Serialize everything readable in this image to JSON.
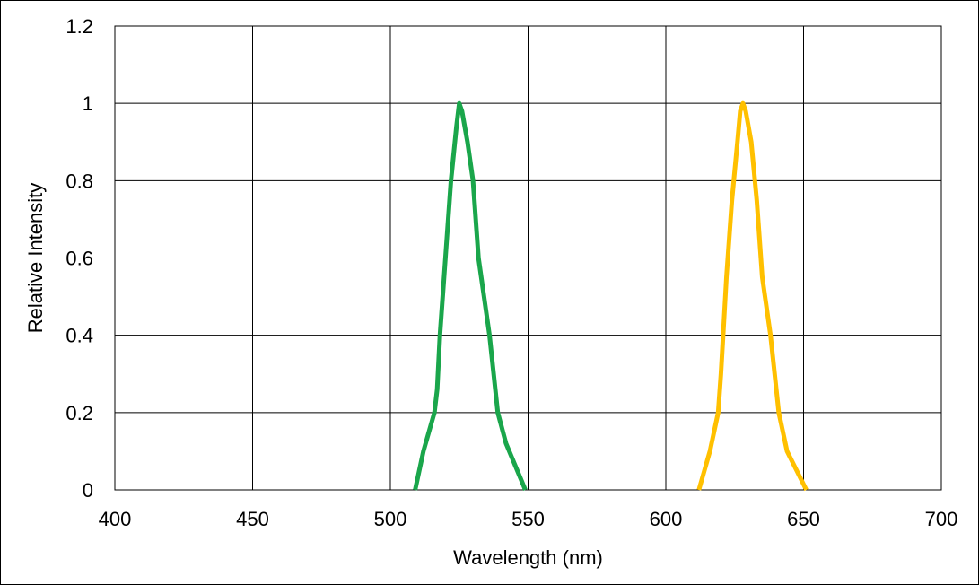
{
  "chart_data": {
    "type": "line",
    "title": "",
    "xlabel": "Wavelength (nm)",
    "ylabel": "Relative Intensity",
    "xlim": [
      400,
      700
    ],
    "ylim": [
      0,
      1.2
    ],
    "x_ticks": [
      400,
      450,
      500,
      550,
      600,
      650,
      700
    ],
    "y_ticks": [
      0,
      0.2,
      0.4,
      0.6,
      0.8,
      1,
      1.2
    ],
    "x_tick_labels": [
      "400",
      "450",
      "500",
      "550",
      "600",
      "650",
      "700"
    ],
    "y_tick_labels": [
      "0",
      "0.2",
      "0.4",
      "0.6",
      "0.8",
      "1",
      "1.2"
    ],
    "grid": true,
    "legend": "none",
    "series": [
      {
        "color": "#1aa64b",
        "points": [
          [
            509,
            0
          ],
          [
            512,
            0.1
          ],
          [
            516,
            0.2
          ],
          [
            517,
            0.26
          ],
          [
            518,
            0.4
          ],
          [
            520,
            0.6
          ],
          [
            522,
            0.8
          ],
          [
            524,
            0.94
          ],
          [
            525,
            1.0
          ],
          [
            526,
            0.98
          ],
          [
            528,
            0.9
          ],
          [
            530,
            0.8
          ],
          [
            532,
            0.6
          ],
          [
            536,
            0.4
          ],
          [
            539,
            0.2
          ],
          [
            542,
            0.12
          ],
          [
            549,
            0
          ]
        ]
      },
      {
        "color": "#ffc000",
        "points": [
          [
            612,
            0
          ],
          [
            616,
            0.1
          ],
          [
            619,
            0.2
          ],
          [
            620,
            0.3
          ],
          [
            622,
            0.55
          ],
          [
            624,
            0.75
          ],
          [
            626,
            0.9
          ],
          [
            627,
            0.98
          ],
          [
            628,
            1.0
          ],
          [
            629,
            0.98
          ],
          [
            631,
            0.9
          ],
          [
            633,
            0.75
          ],
          [
            635,
            0.55
          ],
          [
            638,
            0.4
          ],
          [
            641,
            0.2
          ],
          [
            644,
            0.1
          ],
          [
            651,
            0
          ]
        ]
      }
    ]
  }
}
